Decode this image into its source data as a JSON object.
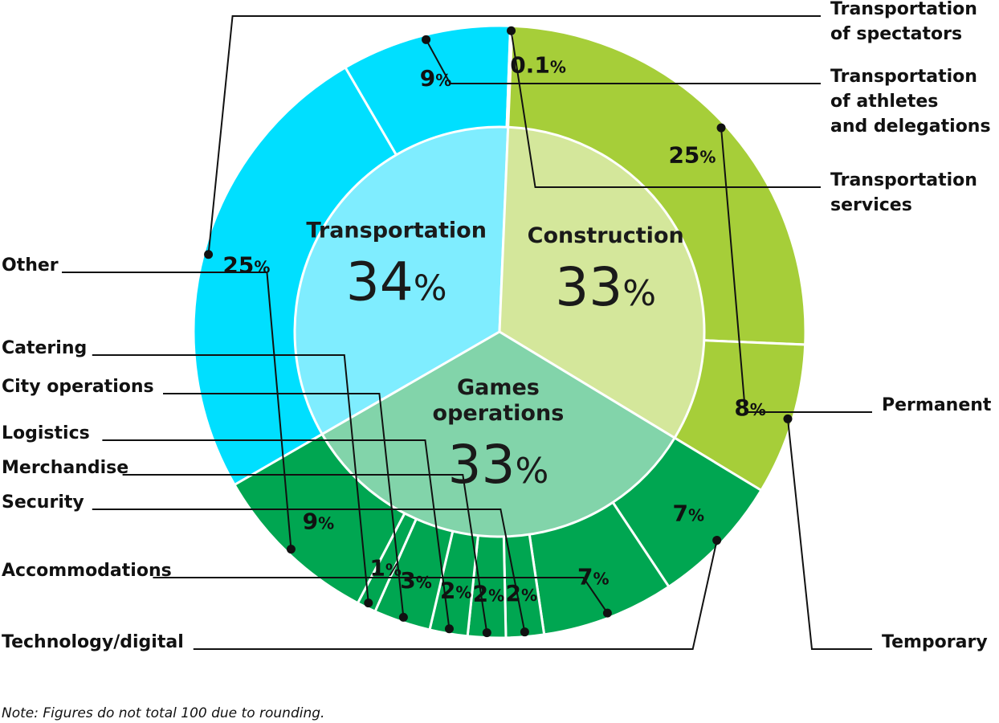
{
  "chart_data": {
    "type": "pie",
    "inner_ring": [
      {
        "label": "Transportation",
        "value": 34,
        "color": "#7FEDFF"
      },
      {
        "label": "Construction",
        "value": 33,
        "color": "#D4E79B"
      },
      {
        "label": "Games operations",
        "value": 33,
        "color": "#82D4AA"
      }
    ],
    "outer_ring": [
      {
        "group": "Transportation",
        "label": "Transportation of spectators",
        "value": 25,
        "value_text": "25",
        "color": "#00DFFF"
      },
      {
        "group": "Transportation",
        "label": "Transportation of athletes and delegations",
        "value": 9,
        "value_text": "9",
        "color": "#00DFFF"
      },
      {
        "group": "Transportation",
        "label": "Transportation services",
        "value": 0.1,
        "value_text": "0.1",
        "color": "#00DFFF"
      },
      {
        "group": "Construction",
        "label": "Permanent",
        "value": 25,
        "value_text": "25",
        "color": "#A6CE39"
      },
      {
        "group": "Construction",
        "label": "Temporary",
        "value": 8,
        "value_text": "8",
        "color": "#A6CE39"
      },
      {
        "group": "Games operations",
        "label": "Technology/digital",
        "value": 7,
        "value_text": "7",
        "color": "#00A651"
      },
      {
        "group": "Games operations",
        "label": "Accommodations",
        "value": 7,
        "value_text": "7",
        "color": "#00A651"
      },
      {
        "group": "Games operations",
        "label": "Security",
        "value": 2,
        "value_text": "2",
        "color": "#00A651"
      },
      {
        "group": "Games operations",
        "label": "Merchandise",
        "value": 2,
        "value_text": "2",
        "color": "#00A651"
      },
      {
        "group": "Games operations",
        "label": "Logistics",
        "value": 2,
        "value_text": "2",
        "color": "#00A651"
      },
      {
        "group": "Games operations",
        "label": "City operations",
        "value": 3,
        "value_text": "3",
        "color": "#00A651"
      },
      {
        "group": "Games operations",
        "label": "Catering",
        "value": 1,
        "value_text": "1",
        "color": "#00A651"
      },
      {
        "group": "Games operations",
        "label": "Other",
        "value": 9,
        "value_text": "9",
        "color": "#00A651"
      }
    ],
    "unit": "%",
    "note": "Note: Figures do not total 100 due to rounding."
  }
}
